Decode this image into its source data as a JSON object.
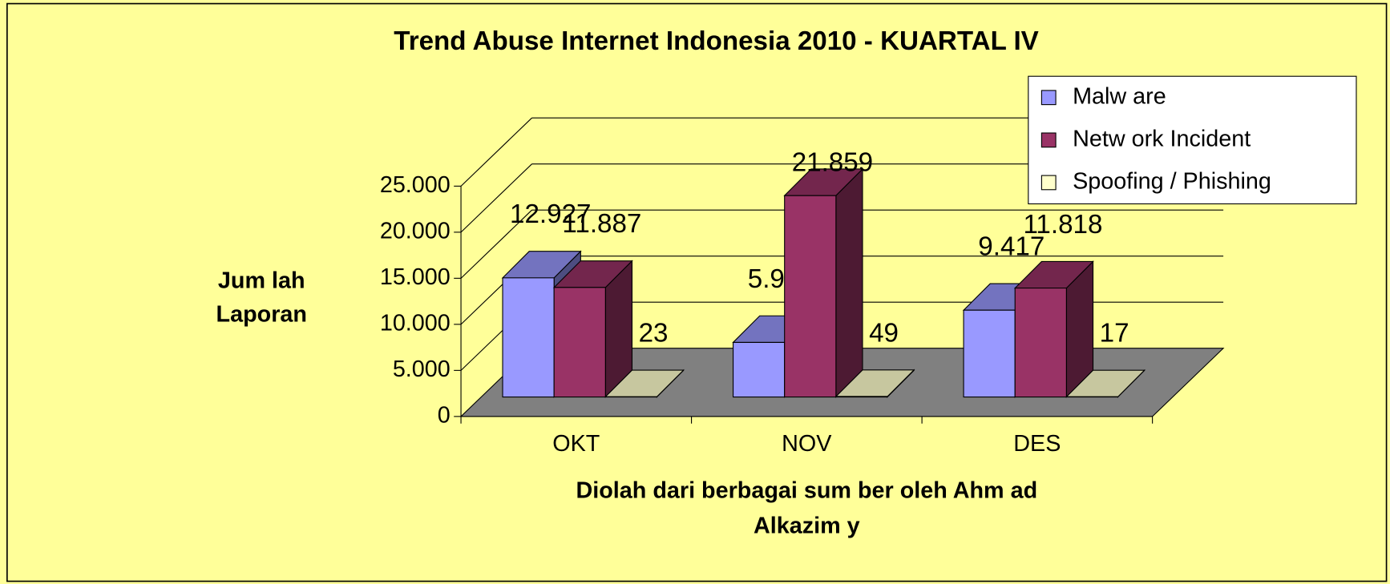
{
  "chart_data": {
    "type": "bar3d",
    "title": "Trend Abuse Internet Indonesia 2010 - KUARTAL IV",
    "y_label": [
      "Jum lah",
      "Laporan"
    ],
    "x_label": [
      "Diolah dari berbagai sum ber oleh Ahm ad",
      "Alkazim y"
    ],
    "categories": [
      "OKT",
      "NOV",
      "DES"
    ],
    "series": [
      {
        "name": "Malw are",
        "color": "#9999ff",
        "values": [
          12927,
          5923,
          9417
        ],
        "value_labels": [
          "12.927",
          "5.923",
          "9.417"
        ]
      },
      {
        "name": "Netw ork Incident",
        "color": "#993366",
        "values": [
          11887,
          21859,
          11818
        ],
        "value_labels": [
          "11.887",
          "21.859",
          "11.818"
        ]
      },
      {
        "name": "Spoofing / Phishing",
        "color": "#ffffcc",
        "values": [
          23,
          49,
          17
        ],
        "value_labels": [
          "23",
          "49",
          "17"
        ]
      }
    ],
    "ylim": [
      0,
      25000
    ],
    "yticks": [
      0,
      {
        "value": 5000,
        "label": "5.000"
      },
      {
        "value": 10000,
        "label": "10.000"
      },
      {
        "value": 15000,
        "label": "15.000"
      },
      {
        "value": 20000,
        "label": "20.000"
      },
      {
        "value": 25000,
        "label": "25.000"
      }
    ],
    "grid": true,
    "legend": "top-right"
  }
}
